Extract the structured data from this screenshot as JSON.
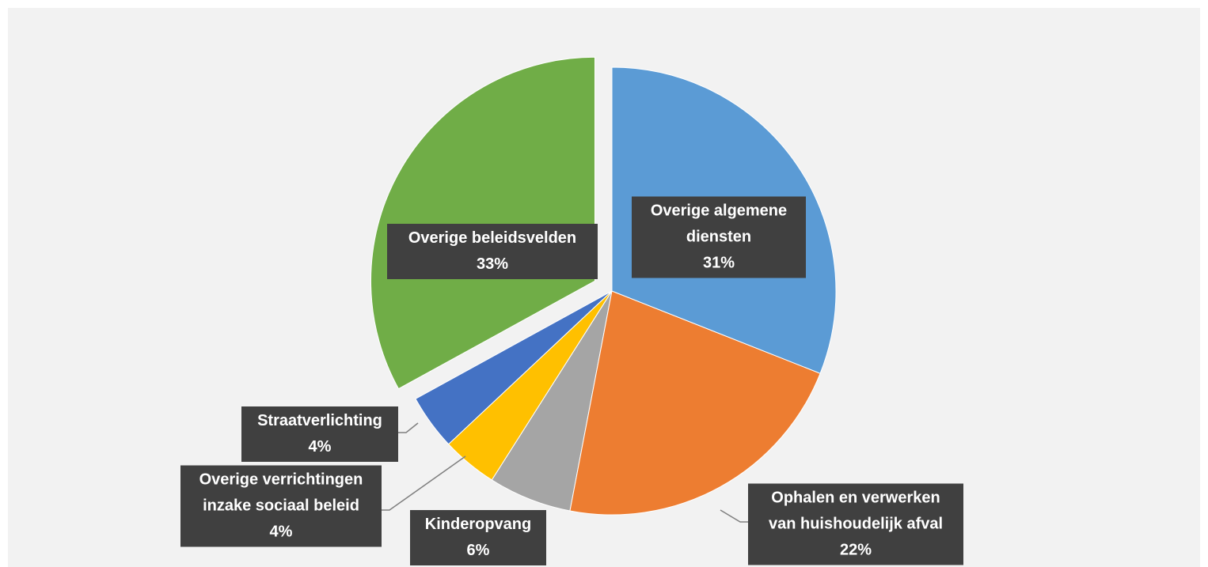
{
  "chart_data": {
    "type": "pie",
    "categories": [
      "Overige algemene diensten",
      "Ophalen en verwerken van huishoudelijk afval",
      "Kinderopvang",
      "Overige verrichtingen inzake sociaal beleid",
      "Straatverlichting",
      "Overige beleidsvelden"
    ],
    "values": [
      31,
      22,
      6,
      4,
      4,
      33
    ],
    "value_labels": [
      "31%",
      "22%",
      "6%",
      "4%",
      "4%",
      "33%"
    ],
    "colors": [
      "#5b9bd5",
      "#ed7d31",
      "#a5a5a5",
      "#ffc000",
      "#4472c4",
      "#70ad47"
    ]
  }
}
